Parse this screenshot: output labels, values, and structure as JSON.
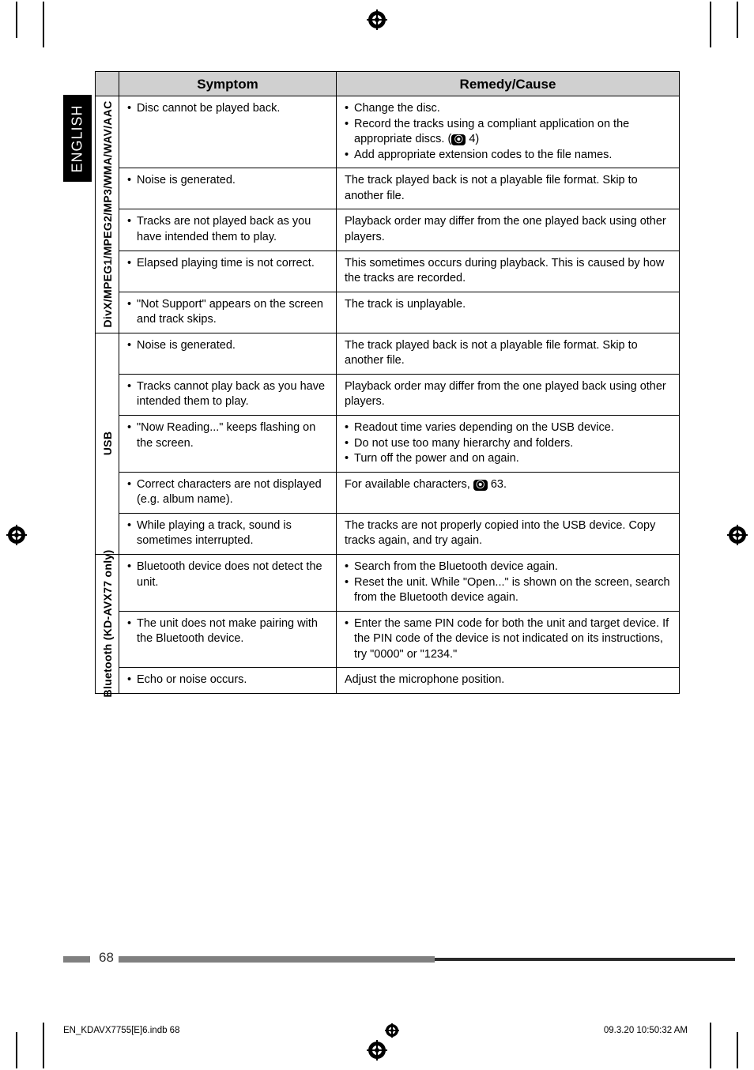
{
  "page": {
    "number": "68",
    "language_tab": "ENGLISH",
    "footer_left": "EN_KDAVX7755[E]6.indb   68",
    "footer_right": "09.3.20   10:50:32 AM"
  },
  "table": {
    "headers": {
      "symptom": "Symptom",
      "remedy": "Remedy/Cause"
    },
    "cols": {
      "rowlabel_w": 30,
      "symptom_w": 275
    },
    "groups": [
      {
        "label": "DivX/MPEG1/MPEG2/MP3/WMA/WAV/AAC",
        "label_fontsize": 14,
        "rows": [
          {
            "symptom": [
              "Disc cannot be played back."
            ],
            "remedy": [
              "Change the disc.",
              "Record the tracks using a compliant application on the appropriate discs. (__Q__ 4)",
              "Add appropriate extension codes to the file names."
            ]
          },
          {
            "symptom": [
              "Noise is generated."
            ],
            "remedy_plain": "The track played back is not a playable file format. Skip to another file."
          },
          {
            "symptom": [
              "Tracks are not played back as you have intended them to play."
            ],
            "remedy_plain": "Playback order may differ from the one played back using other players."
          },
          {
            "symptom": [
              "Elapsed playing time is not correct."
            ],
            "remedy_plain": "This sometimes occurs during playback. This is caused by how the tracks are recorded."
          },
          {
            "symptom": [
              "\"Not Support\" appears on the screen and track skips."
            ],
            "remedy_plain": "The track is unplayable."
          }
        ]
      },
      {
        "label": "USB",
        "label_fontsize": 14,
        "rows": [
          {
            "symptom": [
              "Noise is generated."
            ],
            "remedy_plain": "The track played back is not a playable file format. Skip to another file."
          },
          {
            "symptom": [
              "Tracks cannot play back as you have intended them to play."
            ],
            "remedy_plain": "Playback order may differ from the one played back using other players."
          },
          {
            "symptom": [
              "\"Now Reading...\" keeps flashing on the screen."
            ],
            "remedy": [
              "Readout time varies depending on the USB device.",
              "Do not use too many hierarchy and folders.",
              "Turn off the power and on again."
            ]
          },
          {
            "symptom": [
              "Correct characters are not displayed (e.g. album name)."
            ],
            "remedy_plain": "For available characters, __Q__ 63."
          },
          {
            "symptom": [
              "While playing a track, sound is sometimes interrupted."
            ],
            "remedy_plain": "The tracks are not properly copied into the USB device. Copy tracks again, and try again."
          }
        ]
      },
      {
        "label": "Bluetooth (KD-AVX77 only)",
        "label_fontsize": 14,
        "rows": [
          {
            "symptom": [
              "Bluetooth device does not detect the unit."
            ],
            "remedy": [
              "Search from the Bluetooth device again.",
              "Reset the unit. While \"Open...\" is shown on the screen, search from the Bluetooth device again."
            ]
          },
          {
            "symptom": [
              "The unit does not make pairing with the Bluetooth device."
            ],
            "remedy": [
              "Enter the same PIN code for both the unit and target device. If the PIN code of the device is not indicated on its  instructions, try \"0000\" or \"1234.\""
            ]
          },
          {
            "symptom": [
              "Echo or noise occurs."
            ],
            "remedy_plain": "Adjust the microphone position."
          }
        ]
      }
    ]
  },
  "style": {
    "font_body": 14.5,
    "line_height": 1.35,
    "border_color": "#000000",
    "header_bg": "#d0d0d0",
    "page_bg": "#ffffff",
    "bar_grey": "#808080",
    "bar_dark": "#2a2a2a"
  }
}
